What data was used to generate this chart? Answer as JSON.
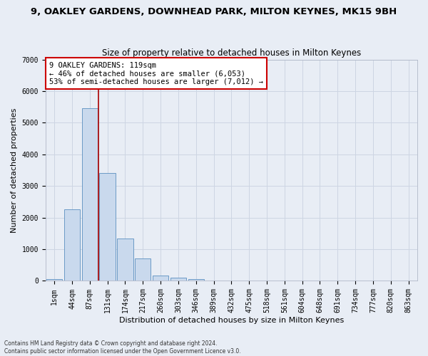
{
  "title": "9, OAKLEY GARDENS, DOWNHEAD PARK, MILTON KEYNES, MK15 9BH",
  "subtitle": "Size of property relative to detached houses in Milton Keynes",
  "xlabel": "Distribution of detached houses by size in Milton Keynes",
  "ylabel": "Number of detached properties",
  "footer_line1": "Contains HM Land Registry data © Crown copyright and database right 2024.",
  "footer_line2": "Contains public sector information licensed under the Open Government Licence v3.0.",
  "categories": [
    "1sqm",
    "44sqm",
    "87sqm",
    "131sqm",
    "174sqm",
    "217sqm",
    "260sqm",
    "303sqm",
    "346sqm",
    "389sqm",
    "432sqm",
    "475sqm",
    "518sqm",
    "561sqm",
    "604sqm",
    "648sqm",
    "691sqm",
    "734sqm",
    "777sqm",
    "820sqm",
    "863sqm"
  ],
  "values": [
    50,
    2270,
    5450,
    3400,
    1350,
    700,
    175,
    90,
    60,
    0,
    0,
    0,
    0,
    0,
    0,
    0,
    0,
    0,
    0,
    0,
    0
  ],
  "bar_color": "#c9d9ed",
  "bar_edge_color": "#5a8fc0",
  "vline_color": "#aa0000",
  "annotation_text": "9 OAKLEY GARDENS: 119sqm\n← 46% of detached houses are smaller (6,053)\n53% of semi-detached houses are larger (7,012) →",
  "annotation_box_color": "#ffffff",
  "annotation_box_edge": "#cc0000",
  "ylim": [
    0,
    7000
  ],
  "yticks": [
    0,
    1000,
    2000,
    3000,
    4000,
    5000,
    6000,
    7000
  ],
  "grid_color": "#cdd5e3",
  "bg_color": "#e8edf5",
  "title_fontsize": 9.5,
  "subtitle_fontsize": 8.5,
  "axis_label_fontsize": 8,
  "tick_fontsize": 7
}
